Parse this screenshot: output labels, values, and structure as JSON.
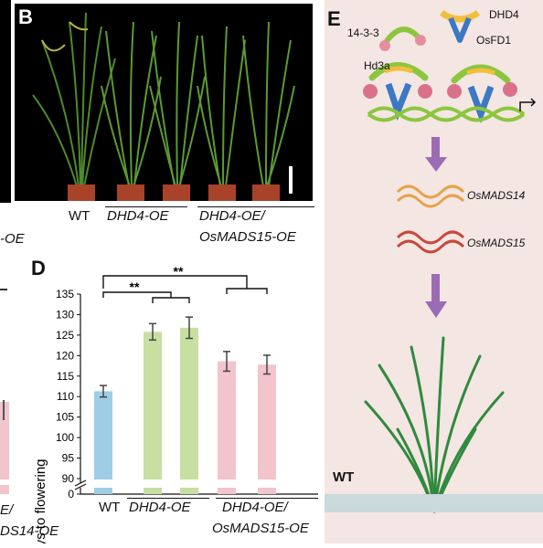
{
  "panel_b": {
    "letter": "B",
    "labels": {
      "wt": "WT",
      "dhd4": "DHD4-OE",
      "combo_line1": "DHD4-OE/",
      "combo_line2": "OsMADS15-OE"
    }
  },
  "left_cut": {
    "oe_fragment": "-OE",
    "e_fragment": "E/",
    "mads14_fragment": "DS14-OE"
  },
  "panel_d": {
    "letter": "D",
    "sig1": "**",
    "sig2": "**",
    "xlabels": {
      "wt": "WT",
      "dhd4": "DHD4-OE",
      "combo_line1": "DHD4-OE/",
      "combo_line2": "OsMADS15-OE"
    }
  },
  "panel_e": {
    "letter": "E",
    "p1433": "14-3-3",
    "hd3a": "Hd3a",
    "dhd4": "DHD4",
    "osfd1": "OsFD1",
    "mads14": "OsMADS14",
    "mads15": "OsMADS15",
    "wt": "WT",
    "colors": {
      "background": "#f4e6e3",
      "ground": "#c9d9dc",
      "arrow": "#9b6cb5",
      "mads14": "#e7a24a",
      "mads15": "#c9473b"
    }
  },
  "chart_data": {
    "type": "bar",
    "title": "",
    "xlabel": "",
    "ylabel": "Days to flowering",
    "ylim": [
      88,
      135
    ],
    "y_break": [
      1,
      88
    ],
    "yticks": [
      0,
      90,
      95,
      100,
      105,
      110,
      115,
      120,
      125,
      130,
      135
    ],
    "categories": [
      "WT",
      "DHD4-OE #1",
      "DHD4-OE #2",
      "DHD4-OE/OsMADS15-OE #1",
      "DHD4-OE/OsMADS15-OE #2"
    ],
    "values": [
      111.3,
      125.8,
      126.8,
      118.6,
      117.8
    ],
    "errors": [
      1.4,
      2.0,
      2.6,
      2.4,
      2.3
    ],
    "colors": [
      "#9fcde6",
      "#c7e0a2",
      "#c7e0a2",
      "#f2c4cc",
      "#f2c4cc"
    ],
    "grid": false,
    "annotations": [
      "**",
      "**"
    ]
  }
}
